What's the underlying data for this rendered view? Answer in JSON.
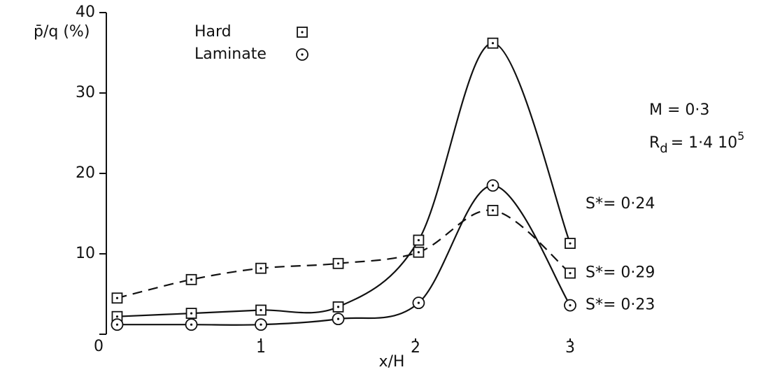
{
  "chart_data": {
    "type": "line",
    "ylabel": "p̄/q (%)",
    "xlabel": "x/H",
    "xlim": [
      0,
      3
    ],
    "ylim": [
      0,
      40
    ],
    "xticks": [
      1,
      2,
      3
    ],
    "yticks": [
      0,
      10,
      20,
      30,
      40
    ],
    "x": [
      0.07,
      0.55,
      1.0,
      1.5,
      2.02,
      2.5,
      3.0
    ],
    "legend": [
      {
        "label": "Hard",
        "marker": "square"
      },
      {
        "label": "Laminate",
        "marker": "circle"
      }
    ],
    "annotations": {
      "mach": "M = 0·3",
      "reynolds_base": "R",
      "reynolds_sub": "d",
      "reynolds_value": "= 1·4 10",
      "reynolds_exp": "5"
    },
    "series": [
      {
        "name": "S*= 0·24",
        "color": "#111111",
        "marker": "square",
        "dash": false,
        "values": [
          2.2,
          2.6,
          3.0,
          3.4,
          11.7,
          36.2,
          11.3
        ]
      },
      {
        "name": "S*= 0·29",
        "color": "#111111",
        "marker": "square",
        "dash": true,
        "values": [
          4.5,
          6.8,
          8.2,
          8.8,
          10.2,
          15.4,
          7.6
        ]
      },
      {
        "name": "S*= 0·23",
        "color": "#111111",
        "marker": "circle",
        "dash": false,
        "values": [
          1.2,
          1.2,
          1.2,
          1.9,
          3.9,
          18.5,
          3.6
        ]
      }
    ]
  }
}
